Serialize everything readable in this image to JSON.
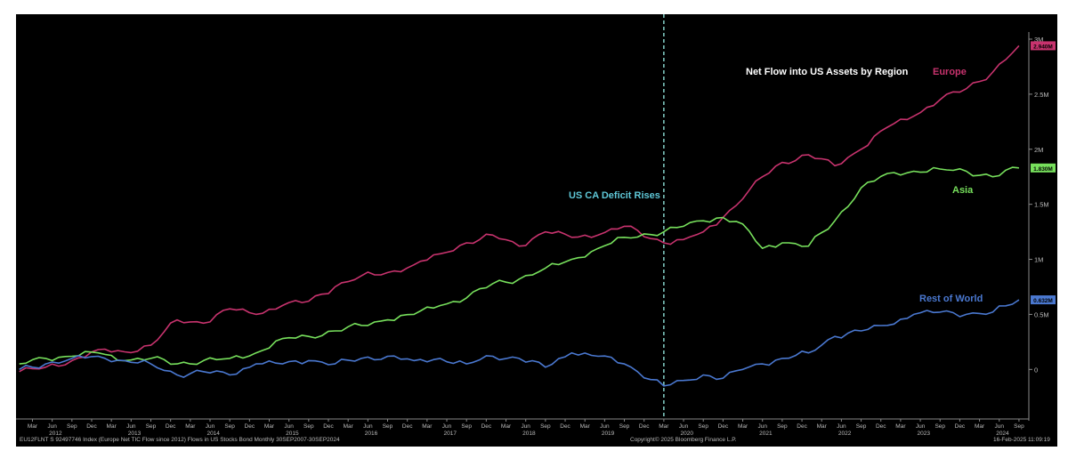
{
  "footer": {
    "left": "EU12FLNT S 92497746 Index (Europe Net TIC Flow since 2012) Flows in US Stocks Bond  Monthly 30SEP2007-30SEP2024",
    "center": "Copyright© 2025 Bloomberg Finance L.P.",
    "right": "16-Feb-2025 11:09:19"
  },
  "chart_data": {
    "type": "line",
    "title": "Net Flow into US Assets by Region",
    "annotation": "US CA Deficit Rises",
    "annotation_date": "Mar 2020",
    "grid": false,
    "legend": "inline labels",
    "background": "#000000",
    "xlim": [
      "Jan 2012",
      "Oct 2024"
    ],
    "ylim": [
      -0.45,
      3.0
    ],
    "y_ticks": [
      {
        "value": 3.0,
        "label": "3M"
      },
      {
        "value": 2.5,
        "label": "2.5M"
      },
      {
        "value": 2.0,
        "label": "2M"
      },
      {
        "value": 1.5,
        "label": "1.5M"
      },
      {
        "value": 1.0,
        "label": "1M"
      },
      {
        "value": 0.5,
        "label": "0.5M"
      },
      {
        "value": 0.0,
        "label": "0"
      }
    ],
    "x_month_ticks": [
      "Mar",
      "Jun",
      "Sep",
      "Dec"
    ],
    "x_years": [
      "2012",
      "2013",
      "2014",
      "2015",
      "2016",
      "2017",
      "2018",
      "2019",
      "2020",
      "2021",
      "2022",
      "2023",
      "2024"
    ],
    "series": [
      {
        "name": "Europe",
        "color": "#c8336e",
        "last_label": "2.940M",
        "points": [
          [
            "2012-01",
            -0.02
          ],
          [
            "2012-05",
            0.02
          ],
          [
            "2012-09",
            0.08
          ],
          [
            "2013-01",
            0.18
          ],
          [
            "2013-05",
            0.16
          ],
          [
            "2013-09",
            0.22
          ],
          [
            "2014-01",
            0.45
          ],
          [
            "2014-05",
            0.42
          ],
          [
            "2014-09",
            0.55
          ],
          [
            "2015-01",
            0.5
          ],
          [
            "2015-05",
            0.58
          ],
          [
            "2015-09",
            0.62
          ],
          [
            "2016-01",
            0.75
          ],
          [
            "2016-05",
            0.85
          ],
          [
            "2016-09",
            0.88
          ],
          [
            "2017-01",
            0.95
          ],
          [
            "2017-05",
            1.05
          ],
          [
            "2017-09",
            1.15
          ],
          [
            "2018-01",
            1.22
          ],
          [
            "2018-05",
            1.12
          ],
          [
            "2018-09",
            1.25
          ],
          [
            "2019-01",
            1.2
          ],
          [
            "2019-05",
            1.22
          ],
          [
            "2019-09",
            1.3
          ],
          [
            "2020-03",
            1.15
          ],
          [
            "2020-06",
            1.18
          ],
          [
            "2020-09",
            1.25
          ],
          [
            "2020-12",
            1.38
          ],
          [
            "2021-03",
            1.55
          ],
          [
            "2021-06",
            1.75
          ],
          [
            "2021-09",
            1.88
          ],
          [
            "2022-01",
            1.95
          ],
          [
            "2022-05",
            1.85
          ],
          [
            "2022-09",
            2.0
          ],
          [
            "2023-01",
            2.2
          ],
          [
            "2023-05",
            2.3
          ],
          [
            "2023-09",
            2.45
          ],
          [
            "2024-01",
            2.55
          ],
          [
            "2024-05",
            2.7
          ],
          [
            "2024-09",
            2.94
          ]
        ]
      },
      {
        "name": "Asia",
        "color": "#77e05c",
        "last_label": "1.830M",
        "points": [
          [
            "2012-01",
            0.05
          ],
          [
            "2012-05",
            0.1
          ],
          [
            "2012-09",
            0.12
          ],
          [
            "2013-01",
            0.15
          ],
          [
            "2013-05",
            0.08
          ],
          [
            "2013-09",
            0.1
          ],
          [
            "2014-01",
            0.05
          ],
          [
            "2014-05",
            0.08
          ],
          [
            "2014-09",
            0.1
          ],
          [
            "2015-01",
            0.15
          ],
          [
            "2015-05",
            0.28
          ],
          [
            "2015-09",
            0.3
          ],
          [
            "2016-01",
            0.35
          ],
          [
            "2016-05",
            0.4
          ],
          [
            "2016-09",
            0.45
          ],
          [
            "2017-01",
            0.5
          ],
          [
            "2017-05",
            0.58
          ],
          [
            "2017-09",
            0.65
          ],
          [
            "2018-01",
            0.78
          ],
          [
            "2018-05",
            0.82
          ],
          [
            "2018-09",
            0.92
          ],
          [
            "2019-01",
            1.0
          ],
          [
            "2019-05",
            1.1
          ],
          [
            "2019-09",
            1.2
          ],
          [
            "2020-03",
            1.25
          ],
          [
            "2020-06",
            1.3
          ],
          [
            "2020-09",
            1.35
          ],
          [
            "2020-12",
            1.38
          ],
          [
            "2021-03",
            1.32
          ],
          [
            "2021-06",
            1.1
          ],
          [
            "2021-09",
            1.15
          ],
          [
            "2022-01",
            1.12
          ],
          [
            "2022-05",
            1.35
          ],
          [
            "2022-09",
            1.65
          ],
          [
            "2023-01",
            1.78
          ],
          [
            "2023-05",
            1.8
          ],
          [
            "2023-09",
            1.82
          ],
          [
            "2024-01",
            1.8
          ],
          [
            "2024-05",
            1.75
          ],
          [
            "2024-09",
            1.83
          ]
        ]
      },
      {
        "name": "Rest of World",
        "color": "#4a78d0",
        "last_label": "0.632M",
        "points": [
          [
            "2012-01",
            0.0
          ],
          [
            "2012-05",
            0.05
          ],
          [
            "2012-09",
            0.1
          ],
          [
            "2013-01",
            0.12
          ],
          [
            "2013-05",
            0.08
          ],
          [
            "2013-09",
            0.05
          ],
          [
            "2014-01",
            -0.05
          ],
          [
            "2014-05",
            -0.02
          ],
          [
            "2014-09",
            -0.05
          ],
          [
            "2015-01",
            0.05
          ],
          [
            "2015-05",
            0.05
          ],
          [
            "2015-09",
            0.08
          ],
          [
            "2016-01",
            0.05
          ],
          [
            "2016-05",
            0.1
          ],
          [
            "2016-09",
            0.12
          ],
          [
            "2017-01",
            0.08
          ],
          [
            "2017-05",
            0.1
          ],
          [
            "2017-09",
            0.05
          ],
          [
            "2018-01",
            0.12
          ],
          [
            "2018-05",
            0.1
          ],
          [
            "2018-09",
            0.02
          ],
          [
            "2019-01",
            0.15
          ],
          [
            "2019-05",
            0.12
          ],
          [
            "2019-09",
            0.05
          ],
          [
            "2020-03",
            -0.15
          ],
          [
            "2020-06",
            -0.1
          ],
          [
            "2020-09",
            -0.05
          ],
          [
            "2020-12",
            -0.08
          ],
          [
            "2021-03",
            0.0
          ],
          [
            "2021-06",
            0.05
          ],
          [
            "2021-09",
            0.1
          ],
          [
            "2022-01",
            0.15
          ],
          [
            "2022-05",
            0.3
          ],
          [
            "2022-09",
            0.35
          ],
          [
            "2023-01",
            0.4
          ],
          [
            "2023-05",
            0.5
          ],
          [
            "2023-09",
            0.52
          ],
          [
            "2024-01",
            0.5
          ],
          [
            "2024-05",
            0.52
          ],
          [
            "2024-09",
            0.632
          ]
        ]
      }
    ]
  }
}
